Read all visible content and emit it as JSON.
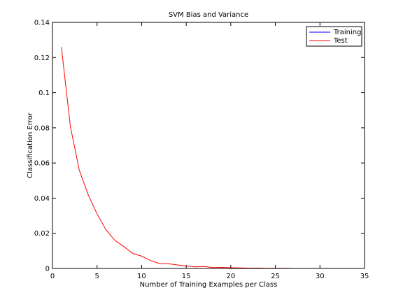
{
  "chart_data": {
    "type": "line",
    "title": "SVM Bias and Variance",
    "xlabel": "Number of Training Examples per Class",
    "ylabel": "Classification Error",
    "xlim": [
      0,
      35
    ],
    "ylim": [
      0,
      0.14
    ],
    "xticks": [
      0,
      5,
      10,
      15,
      20,
      25,
      30,
      35
    ],
    "yticks": [
      0,
      0.02,
      0.04,
      0.06,
      0.08,
      0.1,
      0.12,
      0.14
    ],
    "xtick_labels": [
      "0",
      "5",
      "10",
      "15",
      "20",
      "25",
      "30",
      "35"
    ],
    "ytick_labels": [
      "0",
      "0.02",
      "0.04",
      "0.06",
      "0.08",
      "0.1",
      "0.12",
      "0.14"
    ],
    "grid": false,
    "legend_position": "top-right",
    "series": [
      {
        "name": "Training",
        "color": "#0000ff",
        "x": [
          1,
          2,
          3,
          4,
          5,
          6,
          7,
          8,
          9,
          10,
          11,
          12,
          13,
          14,
          15,
          16,
          17,
          18,
          19,
          20,
          21,
          22,
          23,
          24,
          25,
          26,
          27,
          28,
          29,
          30,
          31,
          32,
          33,
          34,
          35
        ],
        "y": [
          0,
          0,
          0,
          0,
          0,
          0,
          0,
          0,
          0,
          0,
          0,
          0,
          0,
          0,
          0,
          0,
          0,
          0,
          0,
          0,
          0,
          0,
          0,
          0,
          0,
          0,
          0,
          0,
          0,
          0,
          0,
          0,
          0,
          0,
          0
        ]
      },
      {
        "name": "Test",
        "color": "#ff0000",
        "x": [
          1,
          2,
          3,
          4,
          5,
          6,
          7,
          8,
          9,
          10,
          11,
          12,
          13,
          14,
          15,
          16,
          17,
          18,
          19,
          20,
          21,
          22,
          23,
          24,
          25,
          26,
          27,
          28,
          29,
          30
        ],
        "y": [
          0.126,
          0.081,
          0.056,
          0.042,
          0.031,
          0.022,
          0.016,
          0.0125,
          0.0085,
          0.007,
          0.0045,
          0.0028,
          0.0027,
          0.002,
          0.0014,
          0.0009,
          0.0011,
          0.0005,
          0.0006,
          0.0004,
          0.0003,
          0.0002,
          0.0002,
          0.0001,
          0.0001,
          0.0001,
          0,
          0,
          0,
          0
        ]
      }
    ]
  }
}
